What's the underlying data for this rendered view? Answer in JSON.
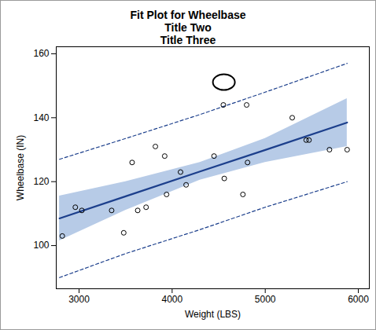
{
  "chart_data": {
    "type": "scatter",
    "title": "Fit Plot for Wheelbase",
    "subtitles": [
      "Title Two",
      "Title Three"
    ],
    "x_label": "Weight (LBS)",
    "y_label": "Wheelbase (IN)",
    "xlim": [
      2755,
      6118
    ],
    "ylim": [
      86.5,
      162.2
    ],
    "xticks": [
      3000,
      4000,
      5000,
      6000
    ],
    "yticks": [
      100,
      120,
      140,
      160
    ],
    "grid": false,
    "points": {
      "x": [
        2820,
        2960,
        3030,
        3350,
        3480,
        3570,
        3630,
        3720,
        3820,
        3920,
        3940,
        4090,
        4150,
        4450,
        4550,
        4560,
        4760,
        4800,
        4810,
        5290,
        5440,
        5470,
        5690,
        5880
      ],
      "y": [
        103,
        112,
        111,
        111,
        104,
        126,
        111,
        112,
        131,
        128,
        116,
        123,
        119,
        128,
        144,
        121,
        116,
        144,
        126,
        140,
        133,
        133,
        130,
        130
      ],
      "color": "#000000",
      "marker": "circle"
    },
    "fit": {
      "x": [
        2790,
        3500,
        4300,
        5000,
        5880
      ],
      "values": [
        108.5,
        115.4,
        123.2,
        129.9,
        138.5
      ],
      "color": "#1c3f8c",
      "line_style": "solid"
    },
    "confidence_band": {
      "lower": [
        101.5,
        111,
        120.5,
        126,
        131
      ],
      "upper": [
        115.5,
        120,
        126,
        133.5,
        146
      ],
      "color": "#b7cbe7"
    },
    "prediction_limits": {
      "lower": [
        90,
        97.5,
        105,
        112,
        120
      ],
      "upper": [
        127,
        133.5,
        141,
        148,
        157
      ],
      "color": "#1c3f8c",
      "line_style": "dashed"
    },
    "annotations": [
      {
        "shape": "ellipse",
        "x": 4560,
        "y": 151
      }
    ]
  }
}
